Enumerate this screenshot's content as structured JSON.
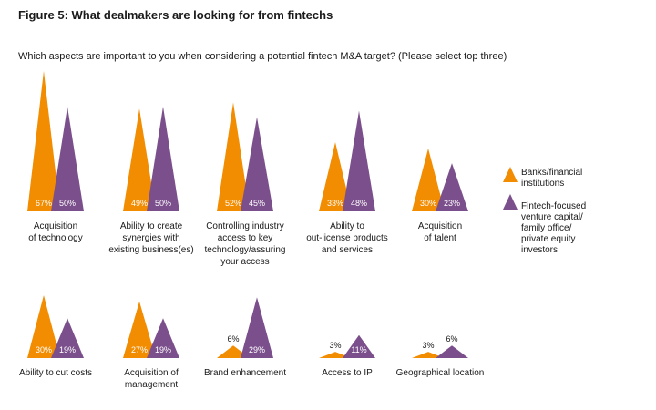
{
  "title": "Figure 5: What dealmakers are looking for from fintechs",
  "question": "Which aspects are important to you when considering a potential fintech M&A target? (Please select top three)",
  "colors": {
    "banks": "#f28c00",
    "fintech": "#7b4f8c"
  },
  "chart_data": {
    "type": "bar",
    "value_unit": "%",
    "categories": [
      [
        "Acquisition",
        "of technology"
      ],
      [
        "Ability to create",
        "synergies with",
        "existing business(es)"
      ],
      [
        "Controlling industry",
        "access to key",
        "technology/assuring",
        "your access"
      ],
      [
        "Ability to",
        "out-license products",
        "and services"
      ],
      [
        "Acquisition",
        "of talent"
      ],
      [
        "Ability to cut costs"
      ],
      [
        "Acquisition of",
        "management"
      ],
      [
        "Brand enhancement"
      ],
      [
        "Access to IP"
      ],
      [
        "Geographical location"
      ]
    ],
    "series": [
      {
        "name": "Banks/financial institutions",
        "legend_lines": [
          "Banks/financial",
          "institutions"
        ],
        "color": "#f28c00",
        "values": [
          67,
          49,
          52,
          33,
          30,
          30,
          27,
          6,
          3,
          3
        ]
      },
      {
        "name": "Fintech-focused venture capital/ family office/ private equity investors",
        "legend_lines": [
          "Fintech-focused",
          "venture capital/",
          "family office/",
          "private equity",
          "investors"
        ],
        "color": "#7b4f8c",
        "values": [
          50,
          50,
          45,
          48,
          23,
          19,
          19,
          29,
          11,
          6
        ]
      }
    ]
  }
}
